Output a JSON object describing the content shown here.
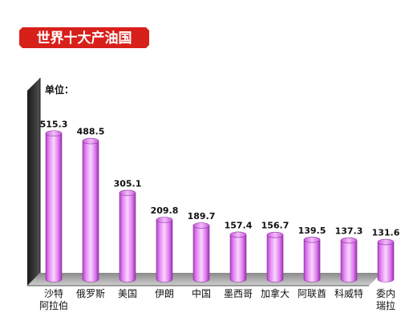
{
  "chart_data": {
    "type": "bar",
    "title": "世界十大产油国",
    "unit_label": "单位：",
    "categories": [
      "沙特\n阿拉伯",
      "俄罗斯",
      "美国",
      "伊朗",
      "中国",
      "墨西哥",
      "加拿大",
      "阿联酋",
      "科威特",
      "委内\n瑞拉"
    ],
    "values": [
      515.3,
      488.5,
      305.1,
      209.8,
      189.7,
      157.4,
      156.7,
      139.5,
      137.3,
      131.6
    ],
    "value_labels": [
      "515.3",
      "488.5",
      "305.1",
      "209.8",
      "189.7",
      "157.4",
      "156.7",
      "139.5",
      "137.3",
      "131.6"
    ],
    "ylim": [
      0,
      600
    ],
    "grid": false,
    "colors": {
      "bar": "#e07cf0",
      "bar_dark": "#a23cb6",
      "bar_light": "#f7d2fc",
      "title_bg": "#d8201b",
      "title_text": "#ffffff",
      "wall": "#262626"
    }
  }
}
